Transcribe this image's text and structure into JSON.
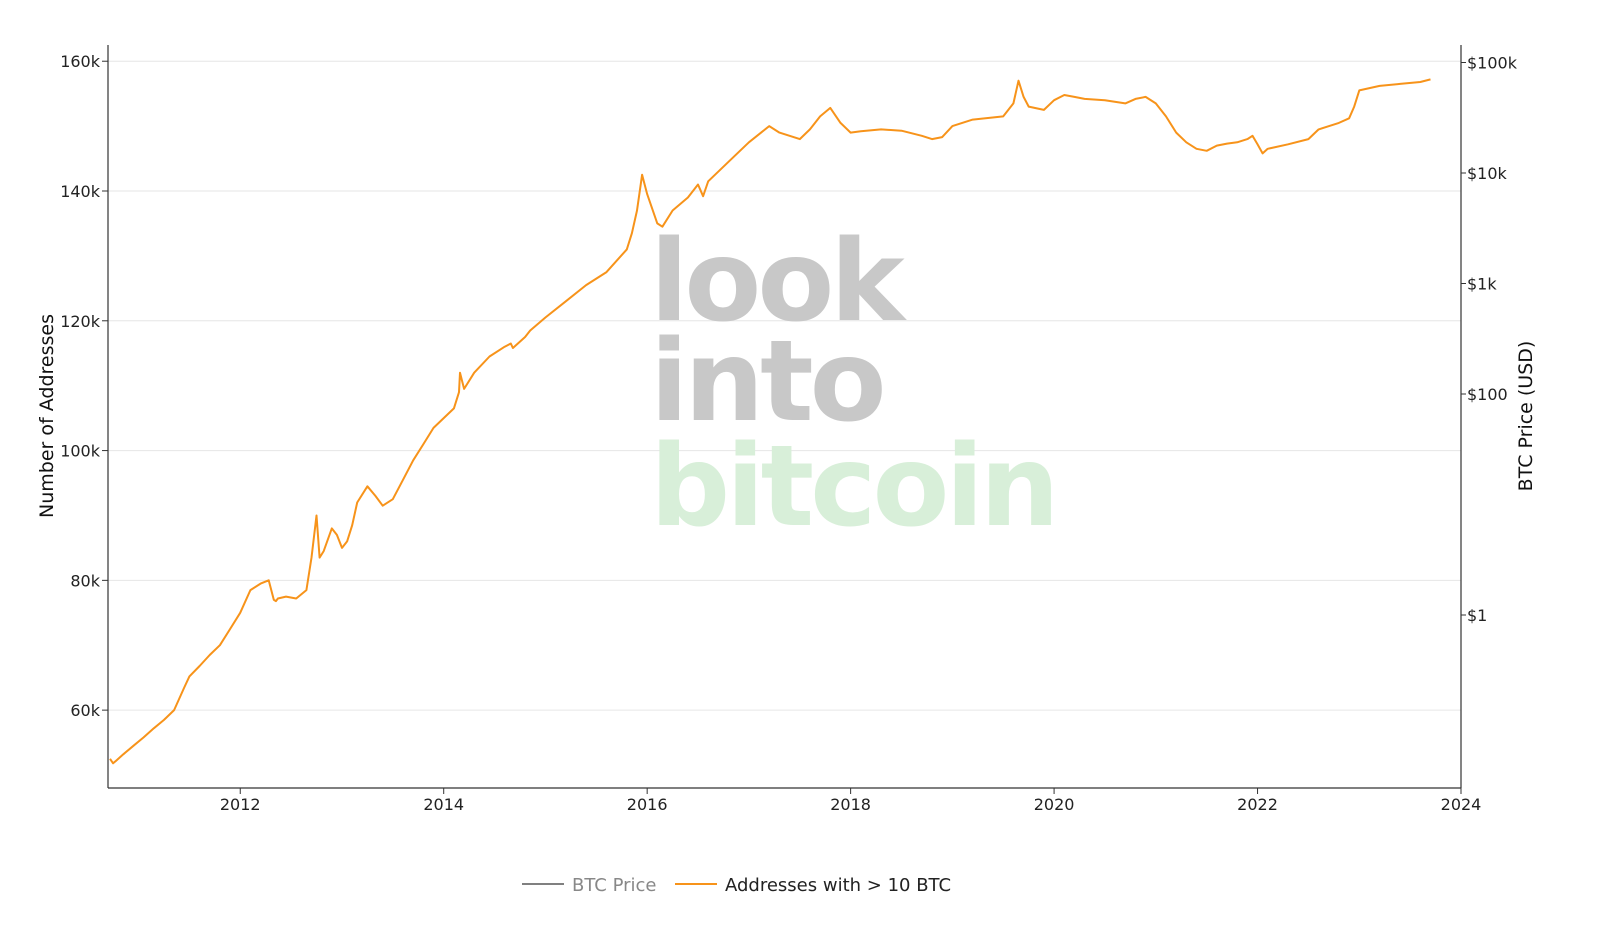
{
  "watermark": {
    "line1": "look",
    "line2": "into",
    "line3": "bitcoin"
  },
  "chart_data": {
    "type": "line",
    "xlabel": "",
    "ylabel": "Number of Addresses",
    "y2label": "BTC Price (USD)",
    "xlim": [
      2010.7,
      2024.0
    ],
    "ylim": [
      48000,
      162500
    ],
    "y2_scale": "log",
    "x_ticks": [
      2012,
      2014,
      2016,
      2018,
      2020,
      2022,
      2024
    ],
    "x_tick_labels": [
      "2012",
      "2014",
      "2016",
      "2018",
      "2020",
      "2022",
      "2024"
    ],
    "y_ticks": [
      60000,
      80000,
      100000,
      120000,
      140000,
      160000
    ],
    "y_tick_labels": [
      "60k",
      "80k",
      "100k",
      "120k",
      "140k",
      "160k"
    ],
    "y2_ticks": [
      1,
      100,
      1000,
      10000,
      100000
    ],
    "y2_tick_labels": [
      "$1",
      "$100",
      "$1k",
      "$10k",
      "$100k"
    ],
    "grid": true,
    "legend_position": "bottom-center",
    "colors": {
      "price": "#808080",
      "addresses": "#f7931a",
      "grid": "#e6e6e6",
      "watermark_gray": "#c8c8c8",
      "watermark_green": "#d8efd9"
    },
    "series": [
      {
        "name": "BTC Price",
        "values": []
      },
      {
        "name": "Addresses with > 10 BTC",
        "x": [
          2010.72,
          2010.75,
          2010.78,
          2010.85,
          2010.95,
          2011.05,
          2011.15,
          2011.25,
          2011.35,
          2011.45,
          2011.5,
          2011.6,
          2011.7,
          2011.8,
          2011.9,
          2012.0,
          2012.1,
          2012.2,
          2012.28,
          2012.33,
          2012.35,
          2012.37,
          2012.45,
          2012.55,
          2012.65,
          2012.7,
          2012.75,
          2012.78,
          2012.82,
          2012.9,
          2012.95,
          2013.0,
          2013.05,
          2013.1,
          2013.15,
          2013.25,
          2013.33,
          2013.4,
          2013.5,
          2013.6,
          2013.7,
          2013.8,
          2013.9,
          2014.0,
          2014.1,
          2014.15,
          2014.16,
          2014.2,
          2014.3,
          2014.45,
          2014.6,
          2014.66,
          2014.68,
          2014.8,
          2014.85,
          2015.0,
          2015.2,
          2015.4,
          2015.6,
          2015.8,
          2015.85,
          2015.9,
          2015.95,
          2016.0,
          2016.1,
          2016.15,
          2016.25,
          2016.4,
          2016.5,
          2016.55,
          2016.6,
          2016.8,
          2017.0,
          2017.2,
          2017.3,
          2017.4,
          2017.5,
          2017.6,
          2017.7,
          2017.8,
          2017.9,
          2018.0,
          2018.1,
          2018.3,
          2018.5,
          2018.7,
          2018.8,
          2018.9,
          2019.0,
          2019.2,
          2019.5,
          2019.6,
          2019.65,
          2019.7,
          2019.75,
          2019.9,
          2020.0,
          2020.1,
          2020.2,
          2020.3,
          2020.5,
          2020.7,
          2020.8,
          2020.9,
          2021.0,
          2021.1,
          2021.2,
          2021.3,
          2021.4,
          2021.5,
          2021.6,
          2021.7,
          2021.8,
          2021.9,
          2021.95,
          2022.0,
          2022.05,
          2022.1,
          2022.3,
          2022.5,
          2022.6,
          2022.8,
          2022.9,
          2022.95,
          2023.0,
          2023.2,
          2023.4,
          2023.6,
          2023.7
        ],
        "values": [
          52500,
          51800,
          52200,
          53200,
          54500,
          55800,
          57200,
          58500,
          60000,
          63500,
          65200,
          66800,
          68500,
          70000,
          72500,
          75000,
          78500,
          79500,
          80000,
          77000,
          76800,
          77200,
          77500,
          77200,
          78500,
          83500,
          90000,
          83500,
          84500,
          88000,
          87000,
          85000,
          86000,
          88500,
          92000,
          94500,
          93000,
          91500,
          92500,
          95500,
          98500,
          101000,
          103500,
          105000,
          106500,
          109000,
          112000,
          109500,
          112000,
          114500,
          116000,
          116500,
          115800,
          117500,
          118500,
          120500,
          123000,
          125500,
          127500,
          131000,
          133500,
          137000,
          142500,
          139500,
          135000,
          134500,
          137000,
          139000,
          141000,
          139200,
          141500,
          144500,
          147500,
          150000,
          149000,
          148500,
          148000,
          149500,
          151500,
          152800,
          150500,
          149000,
          149200,
          149500,
          149300,
          148500,
          148000,
          148300,
          150000,
          151000,
          151500,
          153500,
          157000,
          154500,
          153000,
          152500,
          154000,
          154800,
          154500,
          154200,
          154000,
          153500,
          154200,
          154500,
          153500,
          151500,
          149000,
          147500,
          146500,
          146200,
          147000,
          147300,
          147500,
          148000,
          148500,
          147200,
          145800,
          146500,
          147200,
          148000,
          149500,
          150500,
          151200,
          153000,
          155500,
          156200,
          156500,
          156800,
          157200
        ]
      }
    ],
    "legend": [
      {
        "name": "BTC Price",
        "color": "#808080",
        "muted": true
      },
      {
        "name": "Addresses with > 10 BTC",
        "color": "#f7931a",
        "muted": false
      }
    ]
  }
}
